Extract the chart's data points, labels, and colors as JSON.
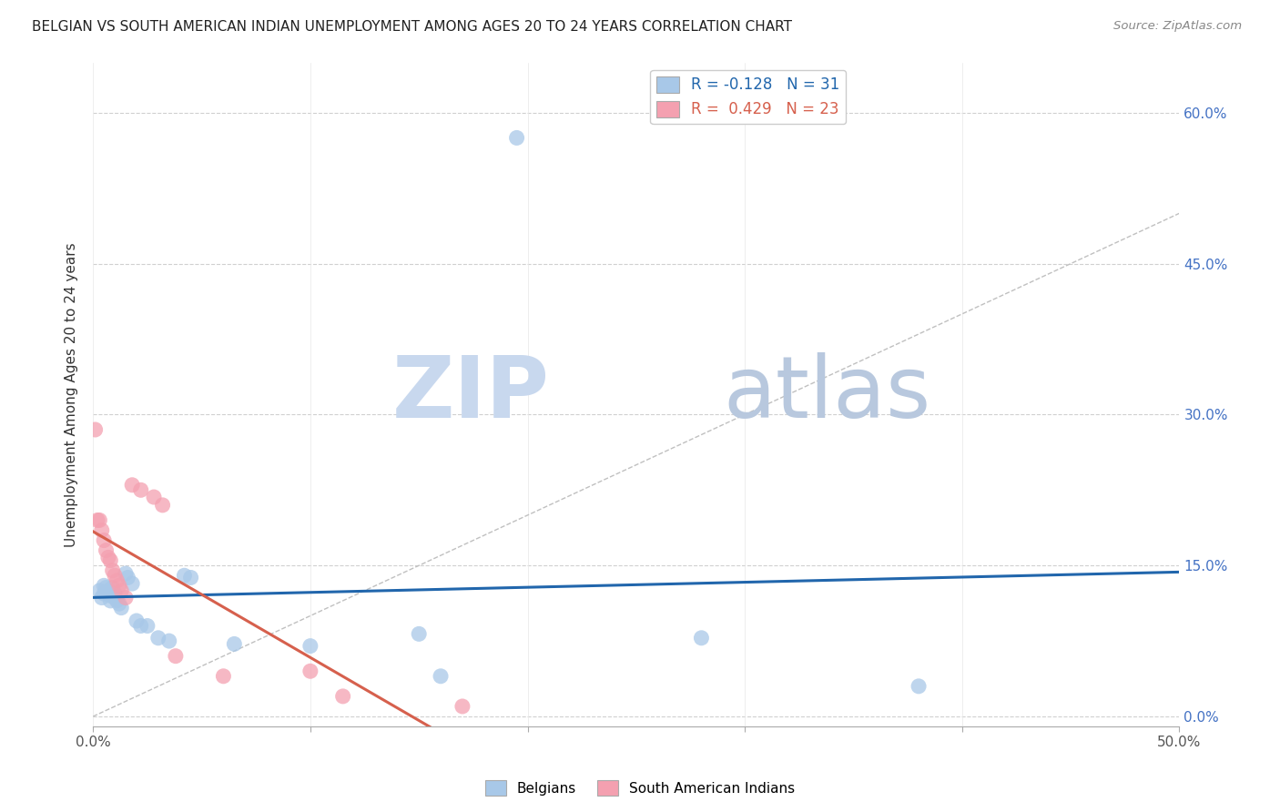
{
  "title": "BELGIAN VS SOUTH AMERICAN INDIAN UNEMPLOYMENT AMONG AGES 20 TO 24 YEARS CORRELATION CHART",
  "source": "Source: ZipAtlas.com",
  "ylabel": "Unemployment Among Ages 20 to 24 years",
  "xlim": [
    0,
    0.5
  ],
  "ylim": [
    -0.01,
    0.65
  ],
  "xticks": [
    0.0,
    0.1,
    0.2,
    0.3,
    0.4,
    0.5
  ],
  "xtick_labels_show": [
    "0.0%",
    "",
    "",
    "",
    "",
    "50.0%"
  ],
  "yticks": [
    0.0,
    0.15,
    0.3,
    0.45,
    0.6
  ],
  "ytick_labels_right": [
    "0.0%",
    "15.0%",
    "30.0%",
    "45.0%",
    "60.0%"
  ],
  "legend_r_blue": "-0.128",
  "legend_n_blue": "31",
  "legend_r_pink": "0.429",
  "legend_n_pink": "23",
  "blue_color": "#a8c8e8",
  "pink_color": "#f4a0b0",
  "blue_line_color": "#2166ac",
  "pink_line_color": "#d6604d",
  "blue_scatter": [
    [
      0.003,
      0.125
    ],
    [
      0.004,
      0.118
    ],
    [
      0.005,
      0.13
    ],
    [
      0.005,
      0.122
    ],
    [
      0.006,
      0.128
    ],
    [
      0.007,
      0.125
    ],
    [
      0.008,
      0.12
    ],
    [
      0.008,
      0.115
    ],
    [
      0.009,
      0.128
    ],
    [
      0.01,
      0.122
    ],
    [
      0.01,
      0.118
    ],
    [
      0.011,
      0.115
    ],
    [
      0.012,
      0.112
    ],
    [
      0.013,
      0.108
    ],
    [
      0.015,
      0.142
    ],
    [
      0.016,
      0.138
    ],
    [
      0.018,
      0.132
    ],
    [
      0.02,
      0.095
    ],
    [
      0.022,
      0.09
    ],
    [
      0.025,
      0.09
    ],
    [
      0.03,
      0.078
    ],
    [
      0.035,
      0.075
    ],
    [
      0.042,
      0.14
    ],
    [
      0.045,
      0.138
    ],
    [
      0.065,
      0.072
    ],
    [
      0.1,
      0.07
    ],
    [
      0.15,
      0.082
    ],
    [
      0.16,
      0.04
    ],
    [
      0.195,
      0.575
    ],
    [
      0.28,
      0.078
    ],
    [
      0.38,
      0.03
    ]
  ],
  "pink_scatter": [
    [
      0.001,
      0.285
    ],
    [
      0.002,
      0.195
    ],
    [
      0.003,
      0.195
    ],
    [
      0.004,
      0.185
    ],
    [
      0.005,
      0.175
    ],
    [
      0.006,
      0.165
    ],
    [
      0.007,
      0.158
    ],
    [
      0.008,
      0.155
    ],
    [
      0.009,
      0.145
    ],
    [
      0.01,
      0.14
    ],
    [
      0.011,
      0.135
    ],
    [
      0.012,
      0.13
    ],
    [
      0.013,
      0.125
    ],
    [
      0.015,
      0.118
    ],
    [
      0.018,
      0.23
    ],
    [
      0.022,
      0.225
    ],
    [
      0.028,
      0.218
    ],
    [
      0.032,
      0.21
    ],
    [
      0.038,
      0.06
    ],
    [
      0.06,
      0.04
    ],
    [
      0.1,
      0.045
    ],
    [
      0.115,
      0.02
    ],
    [
      0.17,
      0.01
    ]
  ],
  "watermark_zip": "ZIP",
  "watermark_atlas": "atlas",
  "watermark_color_zip": "#c8d8ee",
  "watermark_color_atlas": "#b8c8de",
  "background_color": "#ffffff",
  "grid_color": "#d0d0d0"
}
